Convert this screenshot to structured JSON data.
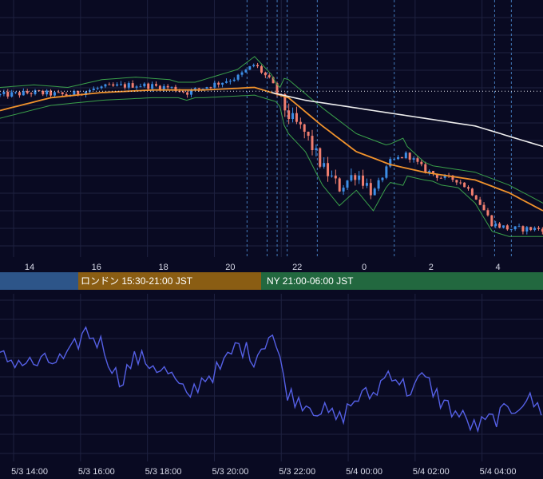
{
  "colors": {
    "background": "#090a22",
    "grid": "#1e2140",
    "bull_candle": "#3d8ee6",
    "bear_candle": "#f07e6f",
    "bollinger": "#3aa04a",
    "ma_fast": "#f0922c",
    "ma_slow": "#ececec",
    "event_line": "#4e8fd8",
    "oscillator": "#5560e6",
    "session_asia": "#2d5589",
    "session_london": "#8a5d13",
    "session_ny": "#22683f"
  },
  "sessions": {
    "london_label": "ロンドン 15:30-21:00 JST",
    "ny_label": "NY 21:00-06:00 JST"
  },
  "chart_data": [
    {
      "type": "candlestick",
      "title": "",
      "x_tick_labels": [
        "14",
        "16",
        "18",
        "20",
        "22",
        "0",
        "2",
        "4"
      ],
      "x_range": [
        0,
        32
      ],
      "y_range": [
        0,
        100
      ],
      "grid": true,
      "overlays": [
        "bollinger_bands",
        "moving_average_fast",
        "moving_average_slow",
        "current_price_dotted_line"
      ],
      "event_lines_hours": [
        20.5,
        21.1,
        21.4,
        21.7,
        22.6,
        24.9,
        27.9,
        28.4
      ],
      "current_price_level": 64.5,
      "anchors": [
        [
          0,
          63
        ],
        [
          2,
          64
        ],
        [
          4,
          63
        ],
        [
          6,
          66
        ],
        [
          8,
          67
        ],
        [
          10,
          66
        ],
        [
          11,
          64
        ],
        [
          12,
          66
        ],
        [
          13,
          68
        ],
        [
          14,
          70
        ],
        [
          15,
          75
        ],
        [
          16,
          68
        ],
        [
          17,
          55
        ],
        [
          18,
          48
        ],
        [
          19,
          35
        ],
        [
          20,
          27
        ],
        [
          21,
          33
        ],
        [
          22,
          25
        ],
        [
          23,
          37
        ],
        [
          24,
          40
        ],
        [
          25,
          34
        ],
        [
          26,
          31
        ],
        [
          27,
          30
        ],
        [
          28,
          24
        ],
        [
          29,
          13
        ],
        [
          30,
          11
        ],
        [
          31,
          11
        ],
        [
          32,
          11
        ]
      ],
      "ma_fast_points": [
        [
          0,
          57
        ],
        [
          3,
          62
        ],
        [
          6,
          64
        ],
        [
          9,
          65
        ],
        [
          12,
          65
        ],
        [
          15,
          66
        ],
        [
          17,
          62
        ],
        [
          19,
          51
        ],
        [
          21,
          41
        ],
        [
          23,
          36
        ],
        [
          25,
          33
        ],
        [
          27,
          31
        ],
        [
          28,
          30
        ],
        [
          30,
          25
        ],
        [
          32,
          18
        ]
      ],
      "ma_slow_points": [
        [
          16,
          64
        ],
        [
          18,
          61
        ],
        [
          20,
          59
        ],
        [
          22,
          57
        ],
        [
          24,
          55
        ],
        [
          26,
          53
        ],
        [
          28,
          51
        ],
        [
          30,
          47
        ],
        [
          32,
          43
        ]
      ]
    },
    {
      "type": "line",
      "title": "",
      "x_tick_labels": [
        "5/3 14:00",
        "5/3 16:00",
        "5/3 18:00",
        "5/3 20:00",
        "5/3 22:00",
        "5/4 00:00",
        "5/4 02:00",
        "5/4 04:00"
      ],
      "x_range": [
        0,
        32
      ],
      "y_range": [
        0,
        100
      ],
      "grid": true,
      "anchors": [
        [
          0,
          62
        ],
        [
          2,
          58
        ],
        [
          4,
          61
        ],
        [
          5,
          78
        ],
        [
          6,
          70
        ],
        [
          7,
          48
        ],
        [
          8,
          62
        ],
        [
          9,
          58
        ],
        [
          10,
          52
        ],
        [
          11,
          38
        ],
        [
          12,
          50
        ],
        [
          13,
          55
        ],
        [
          14,
          70
        ],
        [
          15,
          62
        ],
        [
          16,
          78
        ],
        [
          17,
          40
        ],
        [
          18,
          35
        ],
        [
          19,
          30
        ],
        [
          20,
          25
        ],
        [
          21,
          38
        ],
        [
          22,
          40
        ],
        [
          23,
          55
        ],
        [
          24,
          42
        ],
        [
          25,
          50
        ],
        [
          26,
          36
        ],
        [
          27,
          28
        ],
        [
          28,
          20
        ],
        [
          29,
          25
        ],
        [
          30,
          30
        ],
        [
          31,
          38
        ],
        [
          32,
          30
        ]
      ]
    }
  ]
}
